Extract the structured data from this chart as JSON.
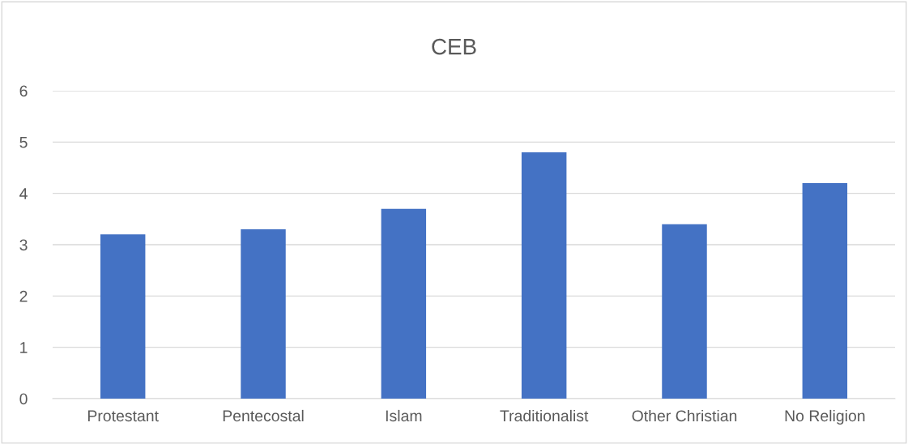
{
  "chart_data": {
    "type": "bar",
    "title": "CEB",
    "categories": [
      "Protestant",
      "Pentecostal",
      "Islam",
      "Traditionalist",
      "Other Christian",
      "No Religion"
    ],
    "values": [
      3.2,
      3.3,
      3.7,
      4.8,
      3.4,
      4.2
    ],
    "color": "#4472c4",
    "ylim": [
      0,
      6
    ],
    "yticks": [
      0,
      1,
      2,
      3,
      4,
      5,
      6
    ],
    "grid": "y"
  }
}
